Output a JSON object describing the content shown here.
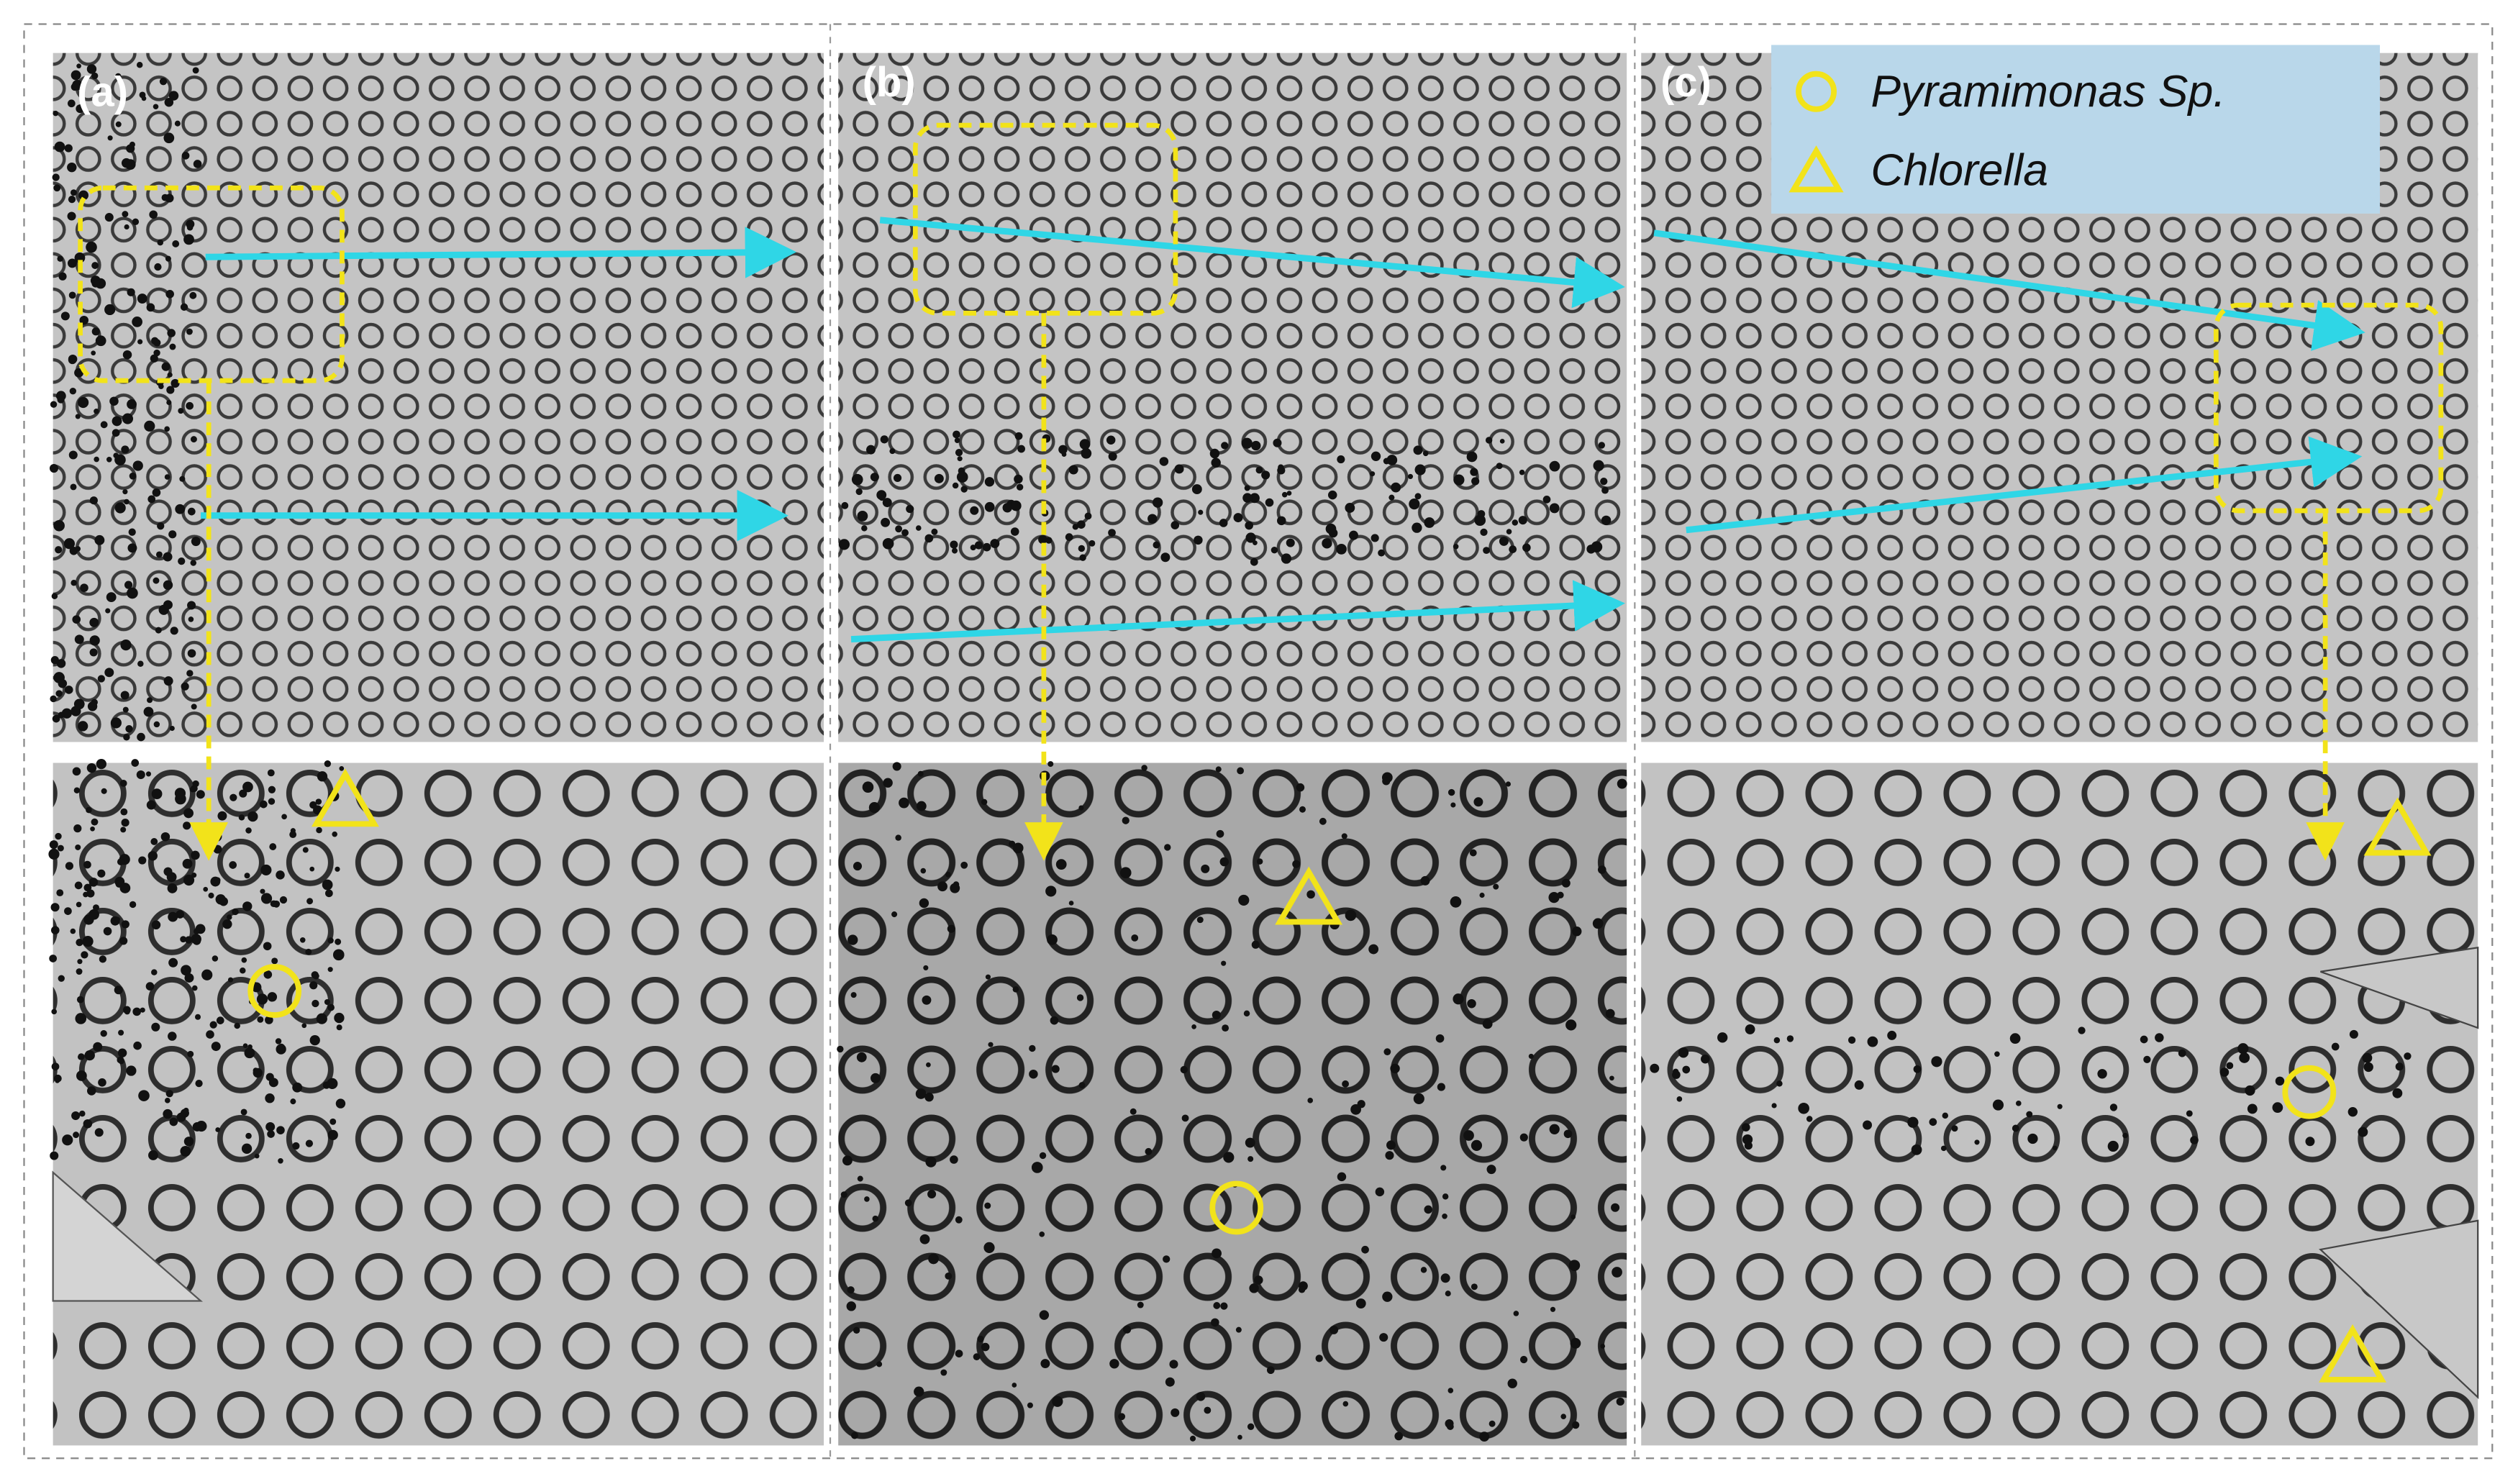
{
  "panels": [
    {
      "label": "(a)"
    },
    {
      "label": "(b)"
    },
    {
      "label": "(c)"
    }
  ],
  "legend": {
    "items": [
      {
        "label": "Pyramimonas Sp."
      },
      {
        "label": "Chlorella"
      }
    ]
  }
}
